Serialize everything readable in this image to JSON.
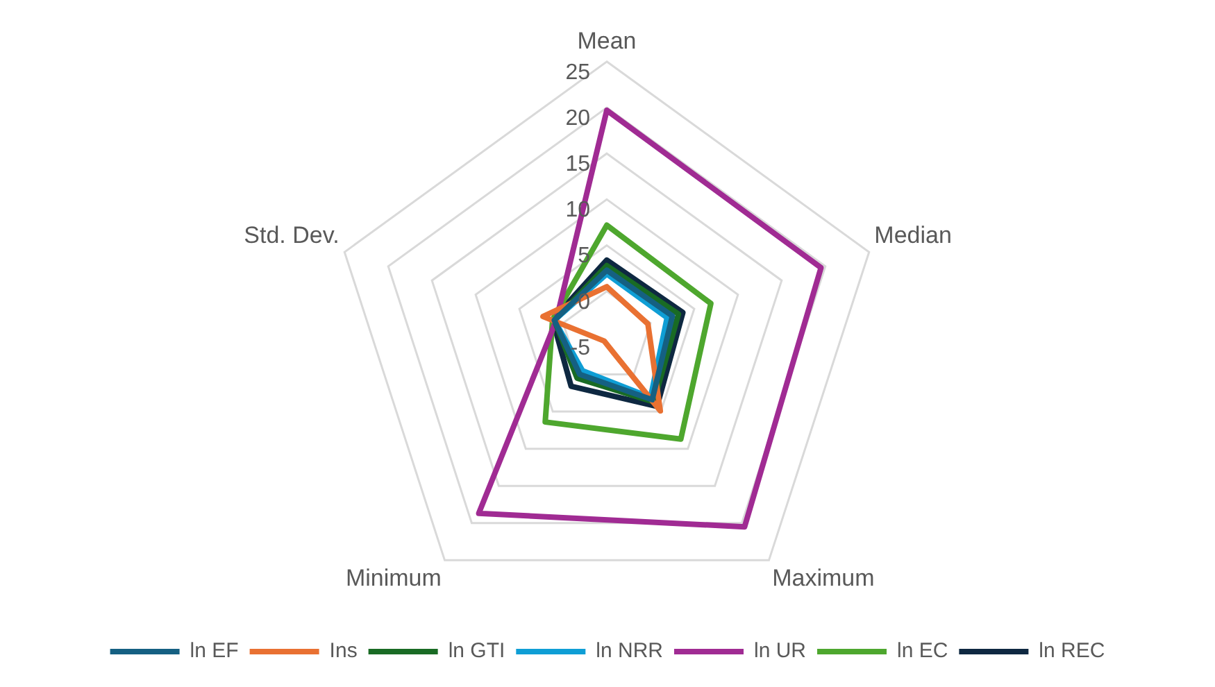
{
  "chart_data": {
    "type": "radar",
    "categories": [
      "Mean",
      "Median",
      "Maximum",
      "Minimum",
      "Std. Dev."
    ],
    "ylim": [
      -5,
      25
    ],
    "yticks": [
      -5,
      0,
      5,
      10,
      15,
      20,
      25
    ],
    "grid": true,
    "legend": "bottom",
    "marker": "none",
    "series": [
      {
        "name": "ln EF",
        "color": "#156082",
        "values": [
          2.3,
          2.5,
          3.4,
          0,
          1
        ]
      },
      {
        "name": "Ins",
        "color": "#e97132",
        "values": [
          0.5,
          -0.3,
          4.9,
          -4.5,
          2.3
        ]
      },
      {
        "name": "ln GTI",
        "color": "#196b24",
        "values": [
          2.8,
          3.2,
          3.7,
          0.5,
          1
        ]
      },
      {
        "name": "ln NRR",
        "color": "#0f9ed5",
        "values": [
          1.9,
          1.9,
          3.1,
          -0.5,
          1
        ]
      },
      {
        "name": "ln UR",
        "color": "#a02b93",
        "values": [
          19.7,
          19.5,
          20.5,
          18.7,
          0.8
        ]
      },
      {
        "name": "ln EC",
        "color": "#4ea72e",
        "values": [
          7.2,
          6.9,
          8.7,
          6.4,
          1.2
        ]
      },
      {
        "name": "ln REC",
        "color": "#0e2841",
        "values": [
          3.4,
          3.7,
          4.3,
          1.6,
          1.2
        ]
      }
    ]
  }
}
